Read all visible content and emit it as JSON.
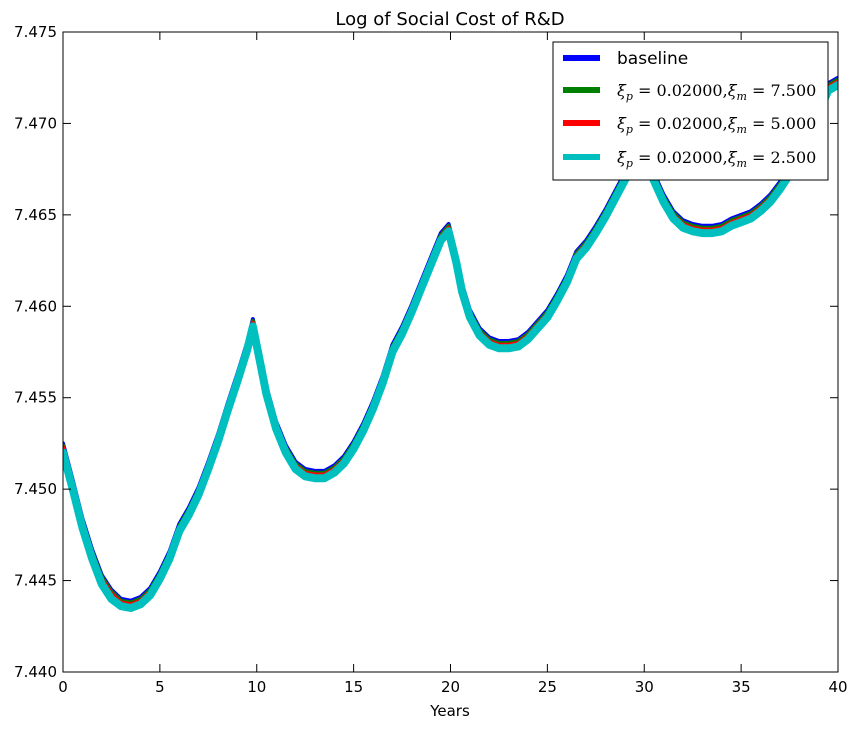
{
  "chart_data": {
    "type": "line",
    "title": "Log of Social Cost of R&D",
    "xlabel": "Years",
    "ylabel": "",
    "xlim": [
      0,
      40
    ],
    "ylim": [
      7.44,
      7.475
    ],
    "xticks": [
      "0",
      "5",
      "10",
      "15",
      "20",
      "25",
      "30",
      "35",
      "40"
    ],
    "yticks": [
      "7.440",
      "7.445",
      "7.450",
      "7.455",
      "7.460",
      "7.465",
      "7.470",
      "7.475"
    ],
    "legend_position": "top-right",
    "grid": false,
    "x": [
      0,
      0.5,
      1,
      1.5,
      2,
      2.5,
      3,
      3.5,
      4,
      4.5,
      5,
      5.5,
      6,
      6.5,
      7,
      7.5,
      8,
      8.5,
      9,
      9.5,
      9.8,
      10.2,
      10.5,
      11,
      11.5,
      12,
      12.5,
      13,
      13.5,
      14,
      14.5,
      15,
      15.5,
      16,
      16.5,
      17,
      17.5,
      18,
      18.5,
      19,
      19.5,
      19.9,
      20.3,
      20.6,
      21,
      21.5,
      22,
      22.5,
      23,
      23.5,
      24,
      24.5,
      25,
      25.5,
      26,
      26.5,
      27,
      27.5,
      28,
      28.5,
      29,
      29.5,
      29.9,
      30.4,
      31,
      31.5,
      32,
      32.5,
      33,
      33.5,
      34,
      34.5,
      35,
      35.5,
      36,
      36.5,
      37,
      37.5,
      38,
      38.5,
      39,
      39.5,
      40
    ],
    "series": [
      {
        "name": "baseline",
        "color": "#0000ff",
        "values": [
          7.4525,
          7.4505,
          7.4484,
          7.4467,
          7.4453,
          7.4445,
          7.444,
          7.4439,
          7.4441,
          7.4446,
          7.4455,
          7.4466,
          7.4481,
          7.449,
          7.4501,
          7.4515,
          7.453,
          7.4547,
          7.4563,
          7.458,
          7.4593,
          7.4572,
          7.4556,
          7.4537,
          7.4524,
          7.4515,
          7.4511,
          7.451,
          7.451,
          7.4513,
          7.4518,
          7.4526,
          7.4536,
          7.4548,
          7.4562,
          7.4579,
          7.4589,
          7.4601,
          7.4614,
          7.4627,
          7.464,
          7.4645,
          7.4628,
          7.4612,
          7.4598,
          7.4588,
          7.4583,
          7.4581,
          7.4581,
          7.4582,
          7.4586,
          7.4592,
          7.4598,
          7.4607,
          7.4617,
          7.463,
          7.4636,
          7.4644,
          7.4653,
          7.4663,
          7.4673,
          7.4683,
          7.4693,
          7.4675,
          7.4661,
          7.4652,
          7.4647,
          7.4645,
          7.4644,
          7.4644,
          7.4645,
          7.4648,
          7.465,
          7.4652,
          7.4656,
          7.4661,
          7.4668,
          7.4676,
          7.4686,
          7.4698,
          7.471,
          7.4722,
          7.4725
        ]
      },
      {
        "name": "",
        "color": "#008000",
        "values": [
          7.4524,
          7.4504,
          7.4483,
          7.4466,
          7.4452,
          7.4444,
          7.4439,
          7.4438,
          7.444,
          7.4445,
          7.4454,
          7.4465,
          7.448,
          7.4489,
          7.45,
          7.4514,
          7.4529,
          7.4546,
          7.4562,
          7.4579,
          7.4592,
          7.4571,
          7.4555,
          7.4536,
          7.4523,
          7.4514,
          7.451,
          7.4509,
          7.4509,
          7.4512,
          7.4517,
          7.4525,
          7.4535,
          7.4547,
          7.4561,
          7.4578,
          7.4588,
          7.46,
          7.4613,
          7.4626,
          7.4639,
          7.4644,
          7.4627,
          7.4611,
          7.4597,
          7.4587,
          7.4582,
          7.458,
          7.458,
          7.4581,
          7.4585,
          7.4591,
          7.4597,
          7.4606,
          7.4616,
          7.4629,
          7.4635,
          7.4643,
          7.4652,
          7.4662,
          7.4672,
          7.4682,
          7.4692,
          7.4674,
          7.466,
          7.4651,
          7.4646,
          7.4644,
          7.4643,
          7.4643,
          7.4644,
          7.4647,
          7.4649,
          7.4651,
          7.4655,
          7.466,
          7.4667,
          7.4675,
          7.4685,
          7.4697,
          7.4709,
          7.4721,
          7.4724
        ]
      },
      {
        "name": "",
        "color": "#ff0000",
        "values": [
          7.4523,
          7.4503,
          7.4482,
          7.4465,
          7.4451,
          7.4443,
          7.4438,
          7.4437,
          7.4439,
          7.4444,
          7.4453,
          7.4464,
          7.4479,
          7.4488,
          7.4499,
          7.4513,
          7.4528,
          7.4545,
          7.4561,
          7.4578,
          7.4591,
          7.457,
          7.4554,
          7.4535,
          7.4522,
          7.4513,
          7.4509,
          7.4508,
          7.4508,
          7.4511,
          7.4516,
          7.4524,
          7.4534,
          7.4546,
          7.456,
          7.4577,
          7.4587,
          7.4599,
          7.4612,
          7.4625,
          7.4638,
          7.4643,
          7.4626,
          7.461,
          7.4596,
          7.4586,
          7.4581,
          7.4579,
          7.4579,
          7.458,
          7.4584,
          7.459,
          7.4596,
          7.4605,
          7.4615,
          7.4628,
          7.4634,
          7.4642,
          7.4651,
          7.4661,
          7.4671,
          7.4681,
          7.4691,
          7.4673,
          7.4659,
          7.465,
          7.4645,
          7.4643,
          7.4642,
          7.4642,
          7.4643,
          7.4646,
          7.4648,
          7.465,
          7.4654,
          7.4659,
          7.4666,
          7.4674,
          7.4684,
          7.4696,
          7.4708,
          7.472,
          7.4723
        ]
      },
      {
        "name": "",
        "color": "#00bfbf",
        "values": [
          7.452,
          7.45,
          7.4479,
          7.4462,
          7.4448,
          7.444,
          7.4436,
          7.4435,
          7.4437,
          7.4442,
          7.4451,
          7.4462,
          7.4477,
          7.4486,
          7.4497,
          7.4511,
          7.4526,
          7.4543,
          7.4559,
          7.4576,
          7.4589,
          7.4568,
          7.4552,
          7.4533,
          7.452,
          7.4511,
          7.4507,
          7.4506,
          7.4506,
          7.4509,
          7.4514,
          7.4522,
          7.4532,
          7.4544,
          7.4558,
          7.4575,
          7.4585,
          7.4597,
          7.461,
          7.4623,
          7.4636,
          7.4641,
          7.4624,
          7.4608,
          7.4594,
          7.4584,
          7.4579,
          7.4577,
          7.4577,
          7.4578,
          7.4582,
          7.4588,
          7.4594,
          7.4603,
          7.4613,
          7.4626,
          7.4632,
          7.464,
          7.4649,
          7.4659,
          7.4669,
          7.4679,
          7.4689,
          7.4671,
          7.4657,
          7.4648,
          7.4643,
          7.4641,
          7.464,
          7.464,
          7.4641,
          7.4644,
          7.4646,
          7.4648,
          7.4652,
          7.4657,
          7.4664,
          7.4672,
          7.4682,
          7.4694,
          7.4706,
          7.4718,
          7.4721
        ]
      }
    ]
  },
  "legend": {
    "items": [
      {
        "kind": "text",
        "label": "baseline",
        "color": "#0000ff"
      },
      {
        "kind": "math",
        "p": "0.02000",
        "m": "7.500",
        "color": "#008000"
      },
      {
        "kind": "math",
        "p": "0.02000",
        "m": "5.000",
        "color": "#ff0000"
      },
      {
        "kind": "math",
        "p": "0.02000",
        "m": "2.500",
        "color": "#00bfbf"
      }
    ]
  }
}
